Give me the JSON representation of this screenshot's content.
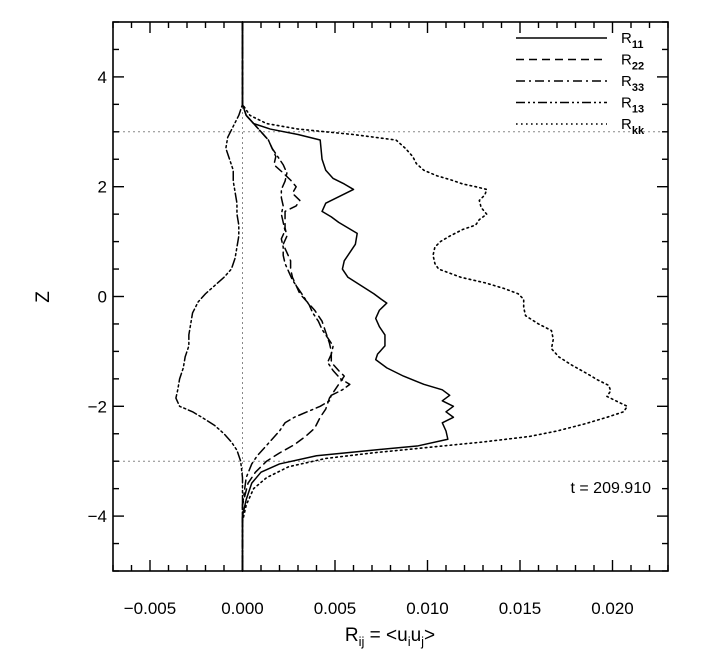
{
  "chart_data": {
    "type": "line",
    "xlabel": {
      "main": "R",
      "sub": "ij",
      "tail": " = <u",
      "sub2": "i",
      "mid": "u",
      "sub3": "j",
      "end": ">"
    },
    "ylabel": "Z",
    "xlim": [
      -0.007,
      0.023
    ],
    "ylim": [
      -5,
      5
    ],
    "xticks": [
      -0.005,
      0.0,
      0.005,
      0.01,
      0.015,
      0.02
    ],
    "xtick_labels": [
      "−0.005",
      "0.000",
      "0.005",
      "0.010",
      "0.015",
      "0.020"
    ],
    "yticks": [
      -4,
      -2,
      0,
      2,
      4
    ],
    "ytick_labels": [
      "−4",
      "−2",
      "0",
      "2",
      "4"
    ],
    "reference_lines": {
      "horizontal": [
        3,
        -3
      ],
      "vertical": [
        0
      ]
    },
    "annotation": "t = 209.910",
    "legend_position": "top-right",
    "series": [
      {
        "name": "R11",
        "name_main": "R",
        "name_sub": "11",
        "dash": "solid",
        "points": [
          [
            0.0,
            5.0
          ],
          [
            0.0,
            3.5
          ],
          [
            0.0002,
            3.3
          ],
          [
            0.0006,
            3.15
          ],
          [
            0.0015,
            3.05
          ],
          [
            0.003,
            2.95
          ],
          [
            0.0042,
            2.85
          ],
          [
            0.0043,
            2.5
          ],
          [
            0.0045,
            2.3
          ],
          [
            0.0049,
            2.15
          ],
          [
            0.0055,
            2.05
          ],
          [
            0.006,
            1.95
          ],
          [
            0.0054,
            1.85
          ],
          [
            0.0045,
            1.7
          ],
          [
            0.0043,
            1.55
          ],
          [
            0.0048,
            1.45
          ],
          [
            0.0052,
            1.35
          ],
          [
            0.0057,
            1.25
          ],
          [
            0.0062,
            1.15
          ],
          [
            0.0061,
            0.95
          ],
          [
            0.0058,
            0.8
          ],
          [
            0.0055,
            0.65
          ],
          [
            0.0054,
            0.5
          ],
          [
            0.0057,
            0.35
          ],
          [
            0.0064,
            0.2
          ],
          [
            0.0071,
            0.05
          ],
          [
            0.0075,
            -0.05
          ],
          [
            0.0078,
            -0.12
          ],
          [
            0.0074,
            -0.25
          ],
          [
            0.0072,
            -0.4
          ],
          [
            0.0074,
            -0.55
          ],
          [
            0.0077,
            -0.7
          ],
          [
            0.0077,
            -0.9
          ],
          [
            0.0073,
            -1.05
          ],
          [
            0.0072,
            -1.15
          ],
          [
            0.0078,
            -1.3
          ],
          [
            0.0087,
            -1.45
          ],
          [
            0.0098,
            -1.6
          ],
          [
            0.0108,
            -1.7
          ],
          [
            0.0112,
            -1.8
          ],
          [
            0.0108,
            -1.9
          ],
          [
            0.0114,
            -2.0
          ],
          [
            0.011,
            -2.1
          ],
          [
            0.0114,
            -2.2
          ],
          [
            0.0108,
            -2.3
          ],
          [
            0.011,
            -2.45
          ],
          [
            0.0111,
            -2.6
          ],
          [
            0.0095,
            -2.72
          ],
          [
            0.007,
            -2.8
          ],
          [
            0.004,
            -2.9
          ],
          [
            0.002,
            -3.05
          ],
          [
            0.001,
            -3.2
          ],
          [
            0.0005,
            -3.4
          ],
          [
            0.0002,
            -3.7
          ],
          [
            0.0,
            -4.0
          ],
          [
            0.0,
            -5.0
          ]
        ]
      },
      {
        "name": "R22",
        "name_main": "R",
        "name_sub": "22",
        "dash": "dashed",
        "points": [
          [
            0.0,
            5.0
          ],
          [
            0.0,
            3.5
          ],
          [
            0.0002,
            3.3
          ],
          [
            0.0006,
            3.15
          ],
          [
            0.001,
            3.0
          ],
          [
            0.0014,
            2.85
          ],
          [
            0.0016,
            2.7
          ],
          [
            0.0018,
            2.55
          ],
          [
            0.0017,
            2.4
          ],
          [
            0.0022,
            2.25
          ],
          [
            0.0026,
            2.12
          ],
          [
            0.0029,
            2.0
          ],
          [
            0.0027,
            1.88
          ],
          [
            0.0031,
            1.75
          ],
          [
            0.0029,
            1.65
          ],
          [
            0.0023,
            1.55
          ],
          [
            0.0023,
            1.4
          ],
          [
            0.0023,
            1.25
          ],
          [
            0.0024,
            1.1
          ],
          [
            0.0022,
            0.95
          ],
          [
            0.0024,
            0.8
          ],
          [
            0.0026,
            0.65
          ],
          [
            0.0026,
            0.5
          ],
          [
            0.0027,
            0.35
          ],
          [
            0.0029,
            0.2
          ],
          [
            0.0031,
            0.05
          ],
          [
            0.0035,
            -0.1
          ],
          [
            0.0039,
            -0.25
          ],
          [
            0.0043,
            -0.45
          ],
          [
            0.0045,
            -0.65
          ],
          [
            0.0047,
            -0.85
          ],
          [
            0.0048,
            -1.0
          ],
          [
            0.0048,
            -1.2
          ],
          [
            0.0052,
            -1.35
          ],
          [
            0.0055,
            -1.45
          ],
          [
            0.0052,
            -1.6
          ],
          [
            0.0047,
            -1.85
          ],
          [
            0.0045,
            -2.05
          ],
          [
            0.0042,
            -2.2
          ],
          [
            0.0039,
            -2.4
          ],
          [
            0.0034,
            -2.55
          ],
          [
            0.0028,
            -2.7
          ],
          [
            0.002,
            -2.85
          ],
          [
            0.0013,
            -3.0
          ],
          [
            0.0007,
            -3.2
          ],
          [
            0.0003,
            -3.4
          ],
          [
            0.0,
            -3.8
          ],
          [
            0.0,
            -5.0
          ]
        ]
      },
      {
        "name": "R33",
        "name_main": "R",
        "name_sub": "33",
        "dash": "dashdot",
        "points": [
          [
            0.0,
            5.0
          ],
          [
            0.0,
            3.5
          ],
          [
            0.0002,
            3.3
          ],
          [
            0.0006,
            3.15
          ],
          [
            0.001,
            3.0
          ],
          [
            0.0014,
            2.85
          ],
          [
            0.0016,
            2.7
          ],
          [
            0.0019,
            2.55
          ],
          [
            0.0022,
            2.4
          ],
          [
            0.0024,
            2.25
          ],
          [
            0.0023,
            2.1
          ],
          [
            0.0021,
            1.95
          ],
          [
            0.0021,
            1.8
          ],
          [
            0.0022,
            1.65
          ],
          [
            0.0021,
            1.5
          ],
          [
            0.0022,
            1.35
          ],
          [
            0.0023,
            1.2
          ],
          [
            0.0021,
            1.05
          ],
          [
            0.0022,
            0.9
          ],
          [
            0.0022,
            0.75
          ],
          [
            0.0023,
            0.6
          ],
          [
            0.0025,
            0.45
          ],
          [
            0.0027,
            0.3
          ],
          [
            0.003,
            0.15
          ],
          [
            0.0033,
            0.0
          ],
          [
            0.0036,
            -0.15
          ],
          [
            0.0038,
            -0.3
          ],
          [
            0.0041,
            -0.45
          ],
          [
            0.0043,
            -0.6
          ],
          [
            0.0046,
            -0.75
          ],
          [
            0.0049,
            -0.9
          ],
          [
            0.0048,
            -1.05
          ],
          [
            0.0046,
            -1.2
          ],
          [
            0.0049,
            -1.35
          ],
          [
            0.0053,
            -1.5
          ],
          [
            0.0058,
            -1.6
          ],
          [
            0.0054,
            -1.7
          ],
          [
            0.0048,
            -1.8
          ],
          [
            0.0047,
            -1.9
          ],
          [
            0.0042,
            -2.0
          ],
          [
            0.0035,
            -2.1
          ],
          [
            0.0028,
            -2.2
          ],
          [
            0.0023,
            -2.3
          ],
          [
            0.002,
            -2.45
          ],
          [
            0.0016,
            -2.6
          ],
          [
            0.0012,
            -2.75
          ],
          [
            0.0008,
            -2.9
          ],
          [
            0.0005,
            -3.05
          ],
          [
            0.0002,
            -3.3
          ],
          [
            0.0,
            -3.8
          ],
          [
            0.0,
            -5.0
          ]
        ]
      },
      {
        "name": "R13",
        "name_main": "R",
        "name_sub": "13",
        "dash": "dashdotdot",
        "points": [
          [
            0.0,
            5.0
          ],
          [
            0.0,
            3.5
          ],
          [
            -0.0002,
            3.3
          ],
          [
            -0.0005,
            3.1
          ],
          [
            -0.0008,
            2.9
          ],
          [
            -0.0009,
            2.7
          ],
          [
            -0.0007,
            2.5
          ],
          [
            -0.0005,
            2.3
          ],
          [
            -0.0005,
            2.1
          ],
          [
            -0.0004,
            1.9
          ],
          [
            -0.0003,
            1.7
          ],
          [
            -0.0003,
            1.5
          ],
          [
            -0.0002,
            1.3
          ],
          [
            -0.0002,
            1.1
          ],
          [
            -0.0003,
            0.9
          ],
          [
            -0.0004,
            0.7
          ],
          [
            -0.0006,
            0.5
          ],
          [
            -0.001,
            0.35
          ],
          [
            -0.0015,
            0.2
          ],
          [
            -0.002,
            0.05
          ],
          [
            -0.0024,
            -0.1
          ],
          [
            -0.0027,
            -0.3
          ],
          [
            -0.0028,
            -0.5
          ],
          [
            -0.0029,
            -0.7
          ],
          [
            -0.0029,
            -0.9
          ],
          [
            -0.0031,
            -1.1
          ],
          [
            -0.0032,
            -1.3
          ],
          [
            -0.0034,
            -1.5
          ],
          [
            -0.0035,
            -1.7
          ],
          [
            -0.0036,
            -1.85
          ],
          [
            -0.0034,
            -2.0
          ],
          [
            -0.0027,
            -2.1
          ],
          [
            -0.0022,
            -2.2
          ],
          [
            -0.0015,
            -2.35
          ],
          [
            -0.001,
            -2.5
          ],
          [
            -0.0006,
            -2.65
          ],
          [
            -0.0003,
            -2.8
          ],
          [
            -0.0001,
            -3.0
          ],
          [
            0.0,
            -3.3
          ],
          [
            0.0,
            -5.0
          ]
        ]
      },
      {
        "name": "Rkk",
        "name_main": "R",
        "name_sub": "kk",
        "dash": "dotted",
        "points": [
          [
            0.0,
            5.0
          ],
          [
            0.0,
            3.5
          ],
          [
            0.0004,
            3.3
          ],
          [
            0.0013,
            3.15
          ],
          [
            0.003,
            3.05
          ],
          [
            0.006,
            2.95
          ],
          [
            0.0083,
            2.85
          ],
          [
            0.0088,
            2.7
          ],
          [
            0.0092,
            2.55
          ],
          [
            0.0094,
            2.42
          ],
          [
            0.0098,
            2.3
          ],
          [
            0.0105,
            2.2
          ],
          [
            0.0113,
            2.12
          ],
          [
            0.0119,
            2.05
          ],
          [
            0.0126,
            2.0
          ],
          [
            0.0132,
            1.95
          ],
          [
            0.0131,
            1.85
          ],
          [
            0.0128,
            1.75
          ],
          [
            0.0129,
            1.62
          ],
          [
            0.0132,
            1.5
          ],
          [
            0.0128,
            1.4
          ],
          [
            0.0126,
            1.3
          ],
          [
            0.0119,
            1.22
          ],
          [
            0.0112,
            1.1
          ],
          [
            0.0107,
            1.0
          ],
          [
            0.0104,
            0.9
          ],
          [
            0.0103,
            0.75
          ],
          [
            0.0104,
            0.6
          ],
          [
            0.0106,
            0.5
          ],
          [
            0.0118,
            0.35
          ],
          [
            0.0131,
            0.25
          ],
          [
            0.0141,
            0.15
          ],
          [
            0.0149,
            0.05
          ],
          [
            0.0152,
            -0.05
          ],
          [
            0.0152,
            -0.2
          ],
          [
            0.0153,
            -0.35
          ],
          [
            0.016,
            -0.5
          ],
          [
            0.0167,
            -0.62
          ],
          [
            0.0168,
            -0.78
          ],
          [
            0.0167,
            -0.95
          ],
          [
            0.0171,
            -1.1
          ],
          [
            0.0178,
            -1.25
          ],
          [
            0.0186,
            -1.4
          ],
          [
            0.0192,
            -1.52
          ],
          [
            0.0198,
            -1.62
          ],
          [
            0.0199,
            -1.72
          ],
          [
            0.0197,
            -1.82
          ],
          [
            0.0203,
            -1.92
          ],
          [
            0.0208,
            -2.0
          ],
          [
            0.0206,
            -2.1
          ],
          [
            0.0197,
            -2.2
          ],
          [
            0.0185,
            -2.32
          ],
          [
            0.017,
            -2.45
          ],
          [
            0.0155,
            -2.55
          ],
          [
            0.013,
            -2.65
          ],
          [
            0.01,
            -2.75
          ],
          [
            0.007,
            -2.85
          ],
          [
            0.0045,
            -2.95
          ],
          [
            0.0025,
            -3.1
          ],
          [
            0.0013,
            -3.3
          ],
          [
            0.0006,
            -3.5
          ],
          [
            0.0002,
            -3.8
          ],
          [
            0.0,
            -4.1
          ],
          [
            0.0,
            -5.0
          ]
        ]
      }
    ]
  }
}
